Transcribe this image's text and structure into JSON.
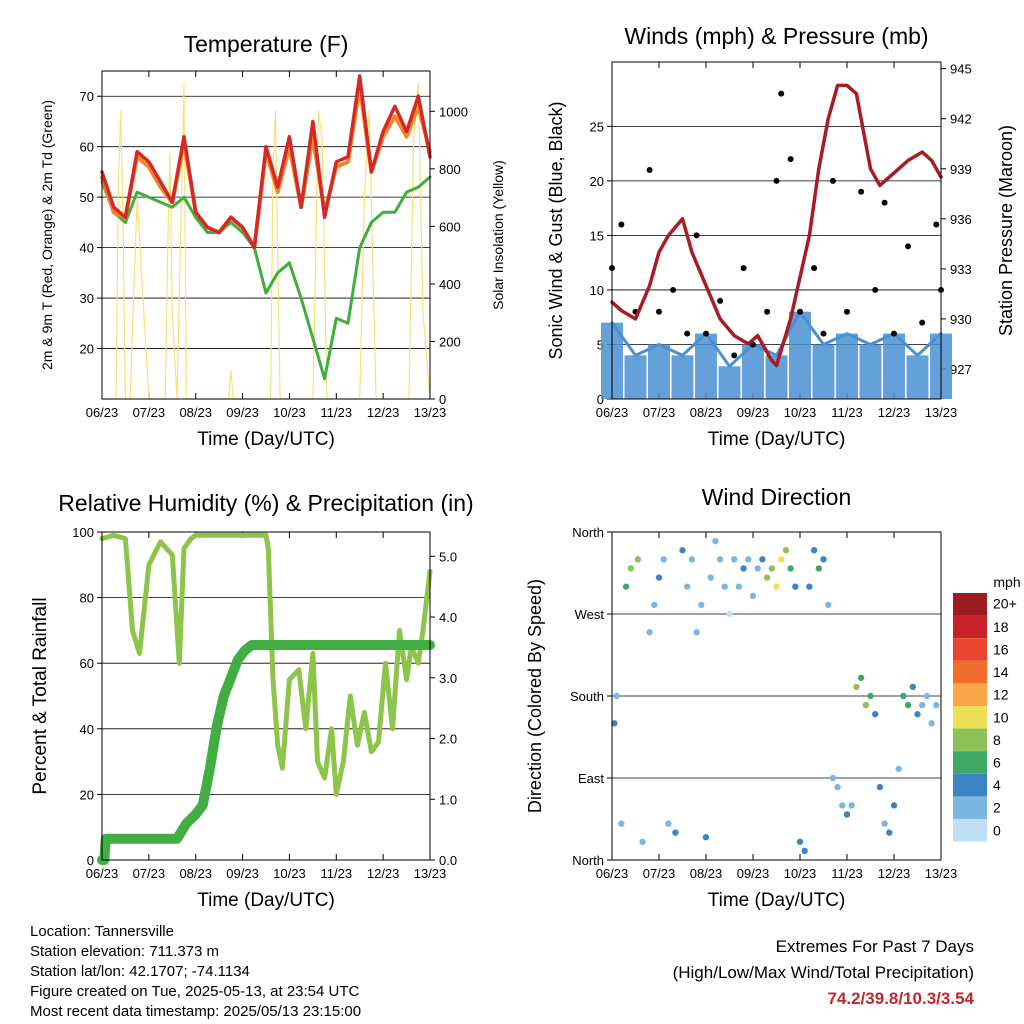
{
  "figure": {
    "x_ticks": [
      "06/23",
      "07/23",
      "08/23",
      "09/23",
      "10/23",
      "11/23",
      "12/23",
      "13/23"
    ],
    "x_label": "Time (Day/UTC)"
  },
  "info": {
    "location": "Location: Tannersville",
    "elevation": "Station elevation: 711.373 m",
    "latlon": "Station lat/lon: 42.1707; -74.1134",
    "created": "Figure created on Tue, 2025-05-13, at 23:54 UTC",
    "latest": "Most recent data timestamp: 2025/05/13 23:15:00"
  },
  "extremes": {
    "title": "Extremes For Past 7 Days",
    "subtitle": "(High/Low/Max Wind/Total Precipitation)",
    "values": "74.2/39.8/10.3/3.54",
    "color": "#c0282d"
  },
  "colorbar": {
    "title": "mph",
    "labels": [
      "20+",
      "18",
      "16",
      "14",
      "12",
      "10",
      "8",
      "6",
      "4",
      "2",
      "0"
    ],
    "colors": [
      "#9b1b1e",
      "#c7212a",
      "#e8452e",
      "#f26c2b",
      "#f9a64a",
      "#ece154",
      "#8dc15a",
      "#3fa867",
      "#3b86c2",
      "#7cb7e3",
      "#bfe1f5"
    ]
  },
  "chart_data": [
    {
      "type": "line",
      "title": "Temperature (F)",
      "xlabel": "Time (Day/UTC)",
      "ylabel": "2m & 9m T (Red, Orange) & 2m Td (Green)",
      "ylabel_right": "Solar Insolation (Yellow)",
      "ylim": [
        10,
        75
      ],
      "yticks": [
        20,
        30,
        40,
        50,
        60,
        70
      ],
      "ylim_right": [
        0,
        1140
      ],
      "yticks_right": [
        0,
        200,
        400,
        600,
        800,
        1000
      ],
      "xlim": [
        0,
        7
      ],
      "colors": {
        "t2m": "#d42a26",
        "t9m": "#f4852a",
        "td": "#3fae3b",
        "solar": "#f7e27a"
      },
      "series": [
        {
          "name": "2m T",
          "x": [
            0,
            0.25,
            0.5,
            0.75,
            1,
            1.25,
            1.5,
            1.75,
            2,
            2.25,
            2.5,
            2.75,
            3,
            3.25,
            3.5,
            3.75,
            4,
            4.25,
            4.5,
            4.75,
            5,
            5.25,
            5.5,
            5.75,
            6,
            6.25,
            6.5,
            6.75,
            7
          ],
          "values": [
            55,
            48,
            46,
            59,
            57,
            53,
            49,
            62,
            47,
            44,
            43,
            46,
            44,
            40,
            60,
            52,
            62,
            48,
            65,
            46,
            57,
            58,
            74,
            55,
            63,
            68,
            63,
            70,
            58
          ]
        },
        {
          "name": "9m T",
          "x": [
            0,
            0.25,
            0.5,
            0.75,
            1,
            1.25,
            1.5,
            1.75,
            2,
            2.25,
            2.5,
            2.75,
            3,
            3.25,
            3.5,
            3.75,
            4,
            4.25,
            4.5,
            4.75,
            5,
            5.25,
            5.5,
            5.75,
            6,
            6.25,
            6.5,
            6.75,
            7
          ],
          "values": [
            54,
            47,
            46,
            58,
            56,
            52,
            49,
            61,
            47,
            44,
            43,
            46,
            44,
            40,
            59,
            51,
            60,
            48,
            62,
            47,
            56,
            57,
            72,
            55,
            62,
            66,
            62,
            68,
            59
          ]
        },
        {
          "name": "2m Td",
          "x": [
            0,
            0.25,
            0.5,
            0.75,
            1,
            1.25,
            1.5,
            1.75,
            2,
            2.25,
            2.5,
            2.75,
            3,
            3.25,
            3.5,
            3.75,
            4,
            4.25,
            4.5,
            4.75,
            5,
            5.25,
            5.5,
            5.75,
            6,
            6.25,
            6.5,
            6.75,
            7
          ],
          "values": [
            53,
            47,
            45,
            51,
            50,
            49,
            48,
            50,
            46,
            43,
            43,
            45,
            43,
            40,
            31,
            35,
            37,
            30,
            22,
            14,
            26,
            25,
            40,
            45,
            47,
            47,
            51,
            52,
            54
          ]
        },
        {
          "name": "Solar",
          "x": [
            0,
            0.3,
            0.35,
            0.4,
            0.45,
            0.5,
            0.6,
            0.75,
            1,
            1.35,
            1.4,
            1.45,
            1.5,
            1.6,
            1.75,
            1.8,
            2,
            2.7,
            2.75,
            2.8,
            3,
            3.6,
            3.65,
            3.7,
            3.8,
            4,
            4.5,
            4.62,
            4.7,
            4.8,
            5,
            5.5,
            5.6,
            5.7,
            5.85,
            6,
            6.55,
            6.65,
            6.75,
            6.85,
            7
          ],
          "values": [
            0,
            0,
            750,
            1000,
            600,
            0,
            0,
            700,
            0,
            0,
            500,
            850,
            300,
            0,
            1100,
            0,
            0,
            0,
            100,
            0,
            0,
            0,
            800,
            1000,
            0,
            0,
            0,
            1000,
            900,
            0,
            0,
            0,
            700,
            1000,
            0,
            0,
            0,
            900,
            1100,
            300,
            0
          ]
        }
      ]
    },
    {
      "type": "scatter",
      "title": "Winds (mph) & Pressure (mb)",
      "xlabel": "Time (Day/UTC)",
      "ylabel": "Sonic Wind & Gust (Blue, Black)",
      "ylabel_right": "Station Pressure (Maroon)",
      "ylim": [
        0,
        30.9
      ],
      "yticks": [
        0,
        5,
        10,
        15,
        20,
        25
      ],
      "ylim_right": [
        925.2,
        945.4
      ],
      "yticks_right": [
        927,
        930,
        933,
        936,
        939,
        942,
        945
      ],
      "xlim": [
        0,
        7
      ],
      "colors": {
        "wind": "#4a90d2",
        "gust": "#000000",
        "pressure": "#a81c24"
      },
      "series": [
        {
          "name": "Sonic Wind",
          "x": [
            0,
            0.5,
            1,
            1.5,
            2,
            2.5,
            3,
            3.5,
            4,
            4.5,
            5,
            5.5,
            6,
            6.5,
            7
          ],
          "values": [
            7,
            4,
            5,
            4,
            6,
            3,
            5,
            4,
            8,
            5,
            6,
            5,
            6,
            4,
            6
          ]
        },
        {
          "name": "Gust",
          "x": [
            0,
            0.2,
            0.5,
            0.8,
            1,
            1.3,
            1.6,
            1.8,
            2,
            2.3,
            2.6,
            2.8,
            3,
            3.3,
            3.5,
            3.6,
            3.8,
            4,
            4.3,
            4.5,
            4.7,
            5,
            5.3,
            5.6,
            5.8,
            6,
            6.3,
            6.6,
            6.9,
            7
          ],
          "values": [
            12,
            16,
            8,
            21,
            8,
            10,
            6,
            15,
            6,
            9,
            4,
            12,
            5,
            8,
            20,
            28,
            22,
            8,
            12,
            6,
            20,
            8,
            19,
            10,
            18,
            6,
            14,
            7,
            16,
            10
          ]
        },
        {
          "name": "Pressure",
          "x": [
            0,
            0.2,
            0.5,
            0.8,
            1,
            1.2,
            1.5,
            1.7,
            2,
            2.3,
            2.6,
            2.9,
            3.1,
            3.3,
            3.4,
            3.5,
            3.8,
            4,
            4.2,
            4.4,
            4.6,
            4.8,
            5,
            5.2,
            5.5,
            5.7,
            5.9,
            6.1,
            6.3,
            6.6,
            6.8,
            7
          ],
          "values": [
            931,
            930.5,
            930,
            932,
            934,
            935,
            936,
            934,
            932,
            930,
            929,
            928.5,
            929,
            928,
            927.5,
            927.2,
            930,
            932.5,
            935,
            939,
            942,
            944,
            944,
            943.5,
            939,
            938,
            938.5,
            939,
            939.5,
            940,
            939.5,
            938.5
          ]
        }
      ]
    },
    {
      "type": "line",
      "title": "Relative Humidity (%) & Precipitation (in)",
      "xlabel": "Time (Day/UTC)",
      "ylabel": "Percent & Total Rainfall",
      "ylim": [
        0,
        100
      ],
      "yticks": [
        0,
        20,
        40,
        60,
        80,
        100
      ],
      "ylim_right": [
        0,
        5.4
      ],
      "yticks_right": [
        0.0,
        1.0,
        2.0,
        3.0,
        4.0,
        5.0
      ],
      "xlim": [
        0,
        7
      ],
      "colors": {
        "rh": "#8dc44a",
        "precip": "#41ae43"
      },
      "series": [
        {
          "name": "RH",
          "x": [
            0,
            0.25,
            0.5,
            0.65,
            0.8,
            1,
            1.25,
            1.5,
            1.65,
            1.75,
            1.9,
            2,
            2.5,
            3,
            3.5,
            3.55,
            3.65,
            3.75,
            3.85,
            4,
            4.2,
            4.35,
            4.5,
            4.6,
            4.75,
            4.9,
            5,
            5.15,
            5.3,
            5.45,
            5.6,
            5.75,
            5.9,
            6.05,
            6.2,
            6.35,
            6.5,
            6.6,
            6.75,
            6.85,
            7
          ],
          "values": [
            98,
            99,
            98,
            70,
            63,
            90,
            97,
            93,
            60,
            95,
            98,
            99,
            99,
            99,
            99,
            95,
            55,
            35,
            28,
            55,
            58,
            40,
            63,
            30,
            25,
            40,
            20,
            30,
            50,
            35,
            45,
            33,
            36,
            60,
            40,
            70,
            55,
            65,
            60,
            70,
            88
          ]
        },
        {
          "name": "Precip",
          "x": [
            0,
            0.05,
            0.08,
            0.3,
            1.6,
            1.8,
            2,
            2.15,
            2.3,
            2.45,
            2.6,
            2.75,
            2.9,
            3.05,
            3.2,
            3.5,
            4,
            5,
            6,
            7
          ],
          "values": [
            0,
            0,
            0.35,
            0.35,
            0.35,
            0.6,
            0.75,
            0.9,
            1.5,
            2.2,
            2.7,
            3.0,
            3.3,
            3.45,
            3.54,
            3.54,
            3.54,
            3.54,
            3.54,
            3.54
          ]
        }
      ]
    },
    {
      "type": "scatter",
      "title": "Wind Direction",
      "xlabel": "Time (Day/UTC)",
      "ylabel": "Direction (Colored By Speed)",
      "ylim": [
        0,
        360
      ],
      "ytick_labels": [
        "North",
        "East",
        "South",
        "West",
        "North"
      ],
      "xlim": [
        0,
        7
      ],
      "series": [
        {
          "name": "Direction",
          "x": [
            0.05,
            0.1,
            0.2,
            0.3,
            0.4,
            0.55,
            0.65,
            0.8,
            0.9,
            1,
            1.1,
            1.2,
            1.35,
            1.5,
            1.6,
            1.7,
            1.8,
            1.9,
            2,
            2.1,
            2.2,
            2.3,
            2.4,
            2.5,
            2.6,
            2.7,
            2.8,
            2.9,
            3,
            3.1,
            3.2,
            3.3,
            3.4,
            3.5,
            3.6,
            3.7,
            3.8,
            3.9,
            4,
            4.1,
            4.2,
            4.3,
            4.4,
            4.5,
            4.6,
            4.7,
            4.8,
            4.9,
            5,
            5.1,
            5.2,
            5.3,
            5.4,
            5.5,
            5.6,
            5.7,
            5.8,
            5.9,
            6,
            6.1,
            6.2,
            6.3,
            6.4,
            6.5,
            6.6,
            6.7,
            6.8,
            6.9
          ],
          "values": [
            150,
            180,
            40,
            300,
            320,
            330,
            20,
            250,
            280,
            310,
            330,
            40,
            30,
            340,
            300,
            330,
            250,
            280,
            25,
            310,
            350,
            330,
            300,
            270,
            330,
            300,
            320,
            330,
            290,
            320,
            330,
            310,
            320,
            300,
            330,
            340,
            320,
            300,
            20,
            10,
            300,
            340,
            320,
            330,
            280,
            90,
            80,
            60,
            50,
            60,
            190,
            200,
            170,
            180,
            160,
            80,
            40,
            30,
            60,
            100,
            180,
            170,
            190,
            160,
            170,
            180,
            150,
            170
          ],
          "speeds": [
            4,
            3,
            2,
            7,
            8,
            9,
            2,
            2,
            3,
            4,
            2,
            3,
            4,
            5,
            2,
            3,
            2,
            3,
            4,
            2,
            3,
            3,
            2,
            1,
            2,
            3,
            4,
            3,
            2,
            3,
            4,
            8,
            9,
            10,
            11,
            8,
            6,
            5,
            4,
            4,
            4,
            5,
            6,
            4,
            2,
            3,
            2,
            3,
            4,
            2,
            8,
            7,
            9,
            6,
            5,
            4,
            3,
            4,
            5,
            2,
            7,
            6,
            5,
            4,
            3,
            2,
            3,
            2
          ]
        }
      ]
    }
  ]
}
